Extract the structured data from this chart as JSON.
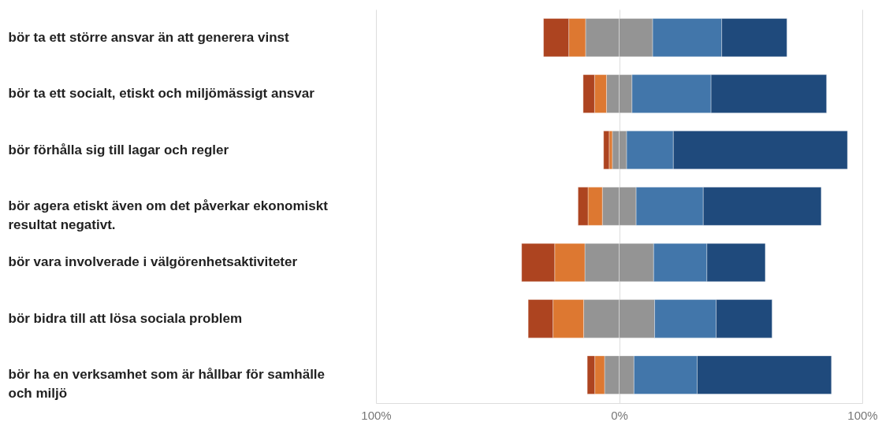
{
  "chart_data": {
    "type": "bar",
    "orientation": "horizontal",
    "stacked": true,
    "categories": [
      "bör ta ett större ansvar än att generera vinst",
      "bör ta ett socialt, etiskt och miljömässigt ansvar",
      "bör förhålla sig till lagar och regler",
      "bör agera etiskt även om det påverkar ekonomiskt resultat negativt.",
      "bör vara involverade i välgörenhetsaktiviteter",
      "bör bidra till att lösa sociala problem",
      "bör ha en verksamhet som är hållbar för samhälle och miljö"
    ],
    "series": [
      {
        "color": "#949494",
        "values": [
          -13.8,
          -5.2,
          -2.8,
          -6.9,
          -14.1,
          -14.6,
          -6.0
        ]
      },
      {
        "color": "#dd7831",
        "values": [
          -6.9,
          -4.9,
          -1.3,
          -5.9,
          -12.4,
          -12.6,
          -4.0
        ]
      },
      {
        "color": "#ad4420",
        "values": [
          -10.4,
          -4.7,
          -2.3,
          -4.1,
          -13.6,
          -10.2,
          -3.1
        ]
      },
      {
        "color": "#949494",
        "values": [
          13.8,
          5.3,
          3.1,
          7.0,
          14.2,
          14.6,
          6.1
        ]
      },
      {
        "color": "#4276aa",
        "values": [
          28.4,
          32.5,
          19.2,
          27.6,
          21.9,
          25.3,
          26.0
        ]
      },
      {
        "color": "#1f4a7c",
        "values": [
          26.8,
          47.5,
          71.6,
          48.5,
          24.0,
          23.0,
          55.2
        ]
      }
    ],
    "xlim": [
      -100,
      100
    ],
    "xticks": [
      {
        "value": -100,
        "label": "100%"
      },
      {
        "value": 0,
        "label": "0%"
      },
      {
        "value": 100,
        "label": "100%"
      }
    ],
    "grid": "x"
  }
}
